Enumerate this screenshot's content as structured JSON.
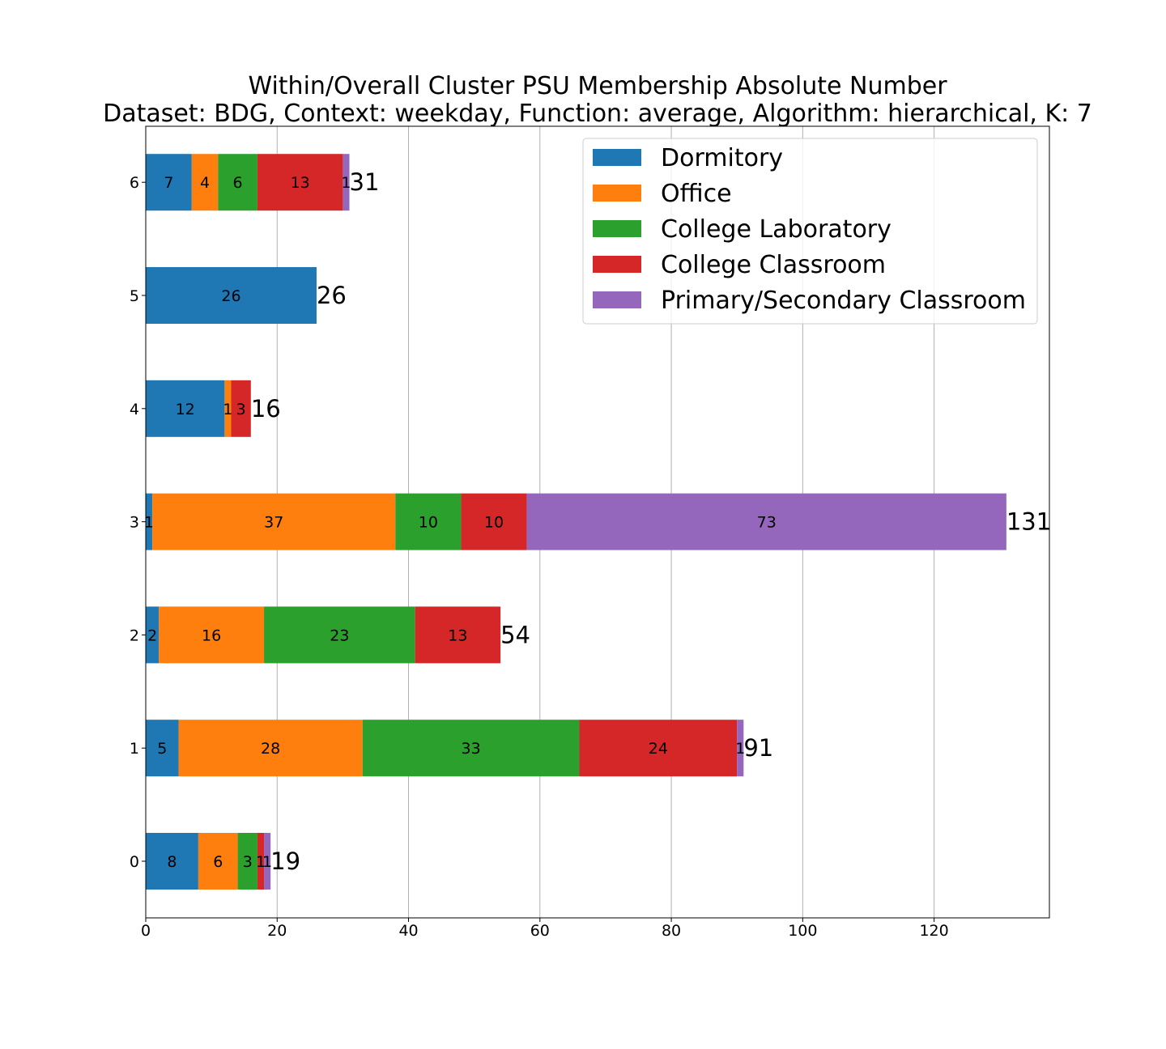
{
  "chart_data": {
    "type": "bar",
    "orientation": "horizontal",
    "stacked": true,
    "title": "Within/Overall Cluster PSU Membership Absolute Number",
    "subtitle": "Dataset: BDG, Context: weekday, Function: average, Algorithm: hierarchical, K: 7",
    "xlabel": "",
    "ylabel": "",
    "categories": [
      "0",
      "1",
      "2",
      "3",
      "4",
      "5",
      "6"
    ],
    "xlim": [
      0,
      137.55
    ],
    "x_ticks": [
      "0",
      "20",
      "40",
      "60",
      "80",
      "100",
      "120"
    ],
    "grid": "vertical",
    "legend_position": "top-right",
    "series": [
      {
        "name": "Dormitory",
        "color": "#1f77b4",
        "values": [
          8,
          5,
          2,
          1,
          12,
          26,
          7
        ]
      },
      {
        "name": "Office",
        "color": "#ff7f0e",
        "values": [
          6,
          28,
          16,
          37,
          1,
          0,
          4
        ]
      },
      {
        "name": "College Laboratory",
        "color": "#2ca02c",
        "values": [
          3,
          33,
          23,
          10,
          0,
          0,
          6
        ]
      },
      {
        "name": "College Classroom",
        "color": "#d62728",
        "values": [
          1,
          24,
          13,
          10,
          3,
          0,
          13
        ]
      },
      {
        "name": "Primary/Secondary Classroom",
        "color": "#9467bd",
        "values": [
          1,
          1,
          0,
          73,
          0,
          0,
          1
        ]
      }
    ],
    "totals": [
      19,
      91,
      54,
      131,
      16,
      26,
      31
    ]
  }
}
